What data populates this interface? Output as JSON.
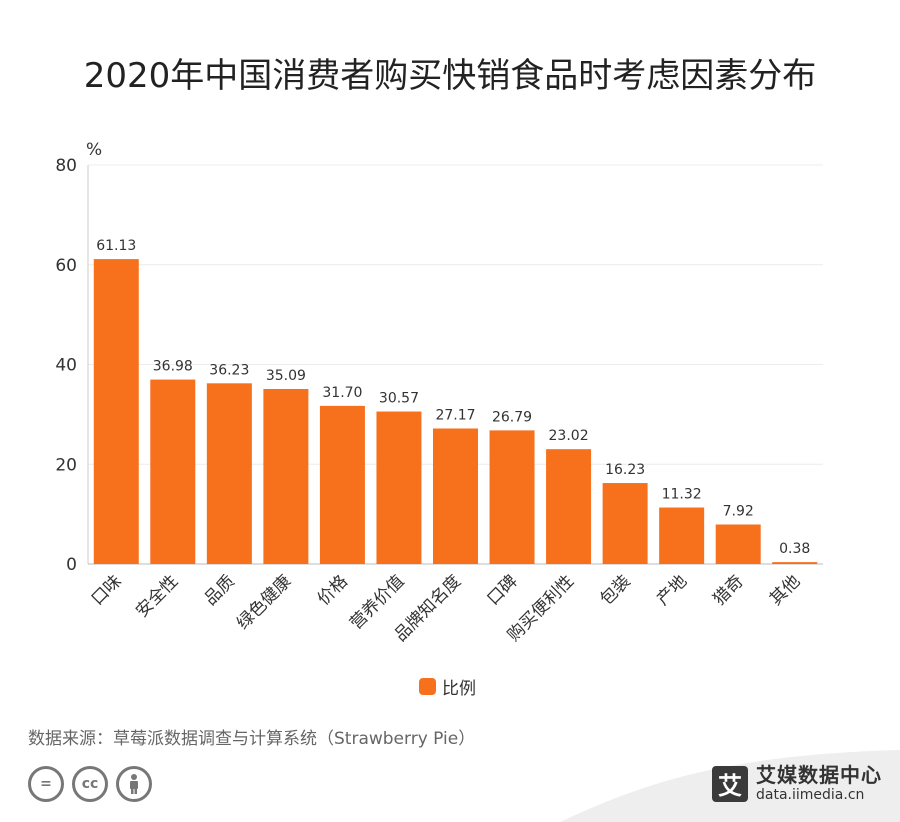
{
  "title": "2020年中国消费者购买快销食品时考虑因素分布",
  "chart_data": {
    "type": "bar",
    "unit": "%",
    "categories": [
      "口味",
      "安全性",
      "品质",
      "绿色健康",
      "价格",
      "营养价值",
      "品牌知名度",
      "口碑",
      "购买便利性",
      "包装",
      "产地",
      "猎奇",
      "其他"
    ],
    "series": [
      {
        "name": "比例",
        "values": [
          61.13,
          36.98,
          36.23,
          35.09,
          31.7,
          30.57,
          27.17,
          26.79,
          23.02,
          16.23,
          11.32,
          7.92,
          0.38
        ]
      }
    ],
    "value_labels": [
      "61.13",
      "36.98",
      "36.23",
      "35.09",
      "31.70",
      "30.57",
      "27.17",
      "26.79",
      "23.02",
      "16.23",
      "11.32",
      "7.92",
      "0.38"
    ],
    "ylim": [
      0,
      80
    ],
    "yticks": [
      0,
      20,
      40,
      60,
      80
    ],
    "grid": true,
    "legend": "bottom-center",
    "bar_color": "#f7701c"
  },
  "legend_label": "比例",
  "source": "数据来源：草莓派数据调查与计算系统（Strawberry Pie）",
  "license_icons": [
    "equals-icon",
    "cc-icon",
    "person-icon"
  ],
  "brand": {
    "logo_char": "艾",
    "name": "艾媒数据中心",
    "url": "data.iimedia.cn"
  }
}
